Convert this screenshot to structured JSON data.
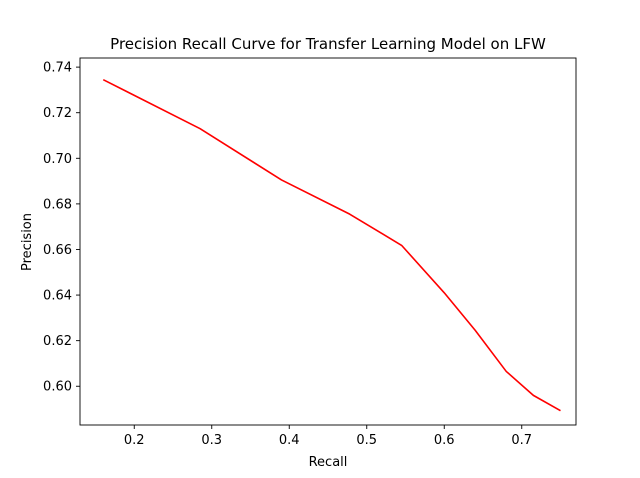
{
  "chart_data": {
    "type": "line",
    "title": "Precision Recall Curve for Transfer Learning Model on LFW",
    "xlabel": "Recall",
    "ylabel": "Precision",
    "xlim": [
      0.13,
      0.77
    ],
    "ylim": [
      0.583,
      0.744
    ],
    "xticks": [
      0.2,
      0.3,
      0.4,
      0.5,
      0.6,
      0.7
    ],
    "yticks": [
      0.6,
      0.62,
      0.64,
      0.66,
      0.68,
      0.7,
      0.72,
      0.74
    ],
    "xtick_labels": [
      "0.2",
      "0.3",
      "0.4",
      "0.5",
      "0.6",
      "0.7"
    ],
    "ytick_labels": [
      "0.60",
      "0.62",
      "0.64",
      "0.66",
      "0.68",
      "0.70",
      "0.72",
      "0.74"
    ],
    "grid": false,
    "series": [
      {
        "color": "#ff0000",
        "x": [
          0.16,
          0.285,
          0.39,
          0.478,
          0.545,
          0.6,
          0.64,
          0.68,
          0.715,
          0.75
        ],
        "y": [
          0.7345,
          0.713,
          0.6905,
          0.6755,
          0.6618,
          0.641,
          0.6245,
          0.6065,
          0.596,
          0.5893
        ]
      }
    ]
  }
}
